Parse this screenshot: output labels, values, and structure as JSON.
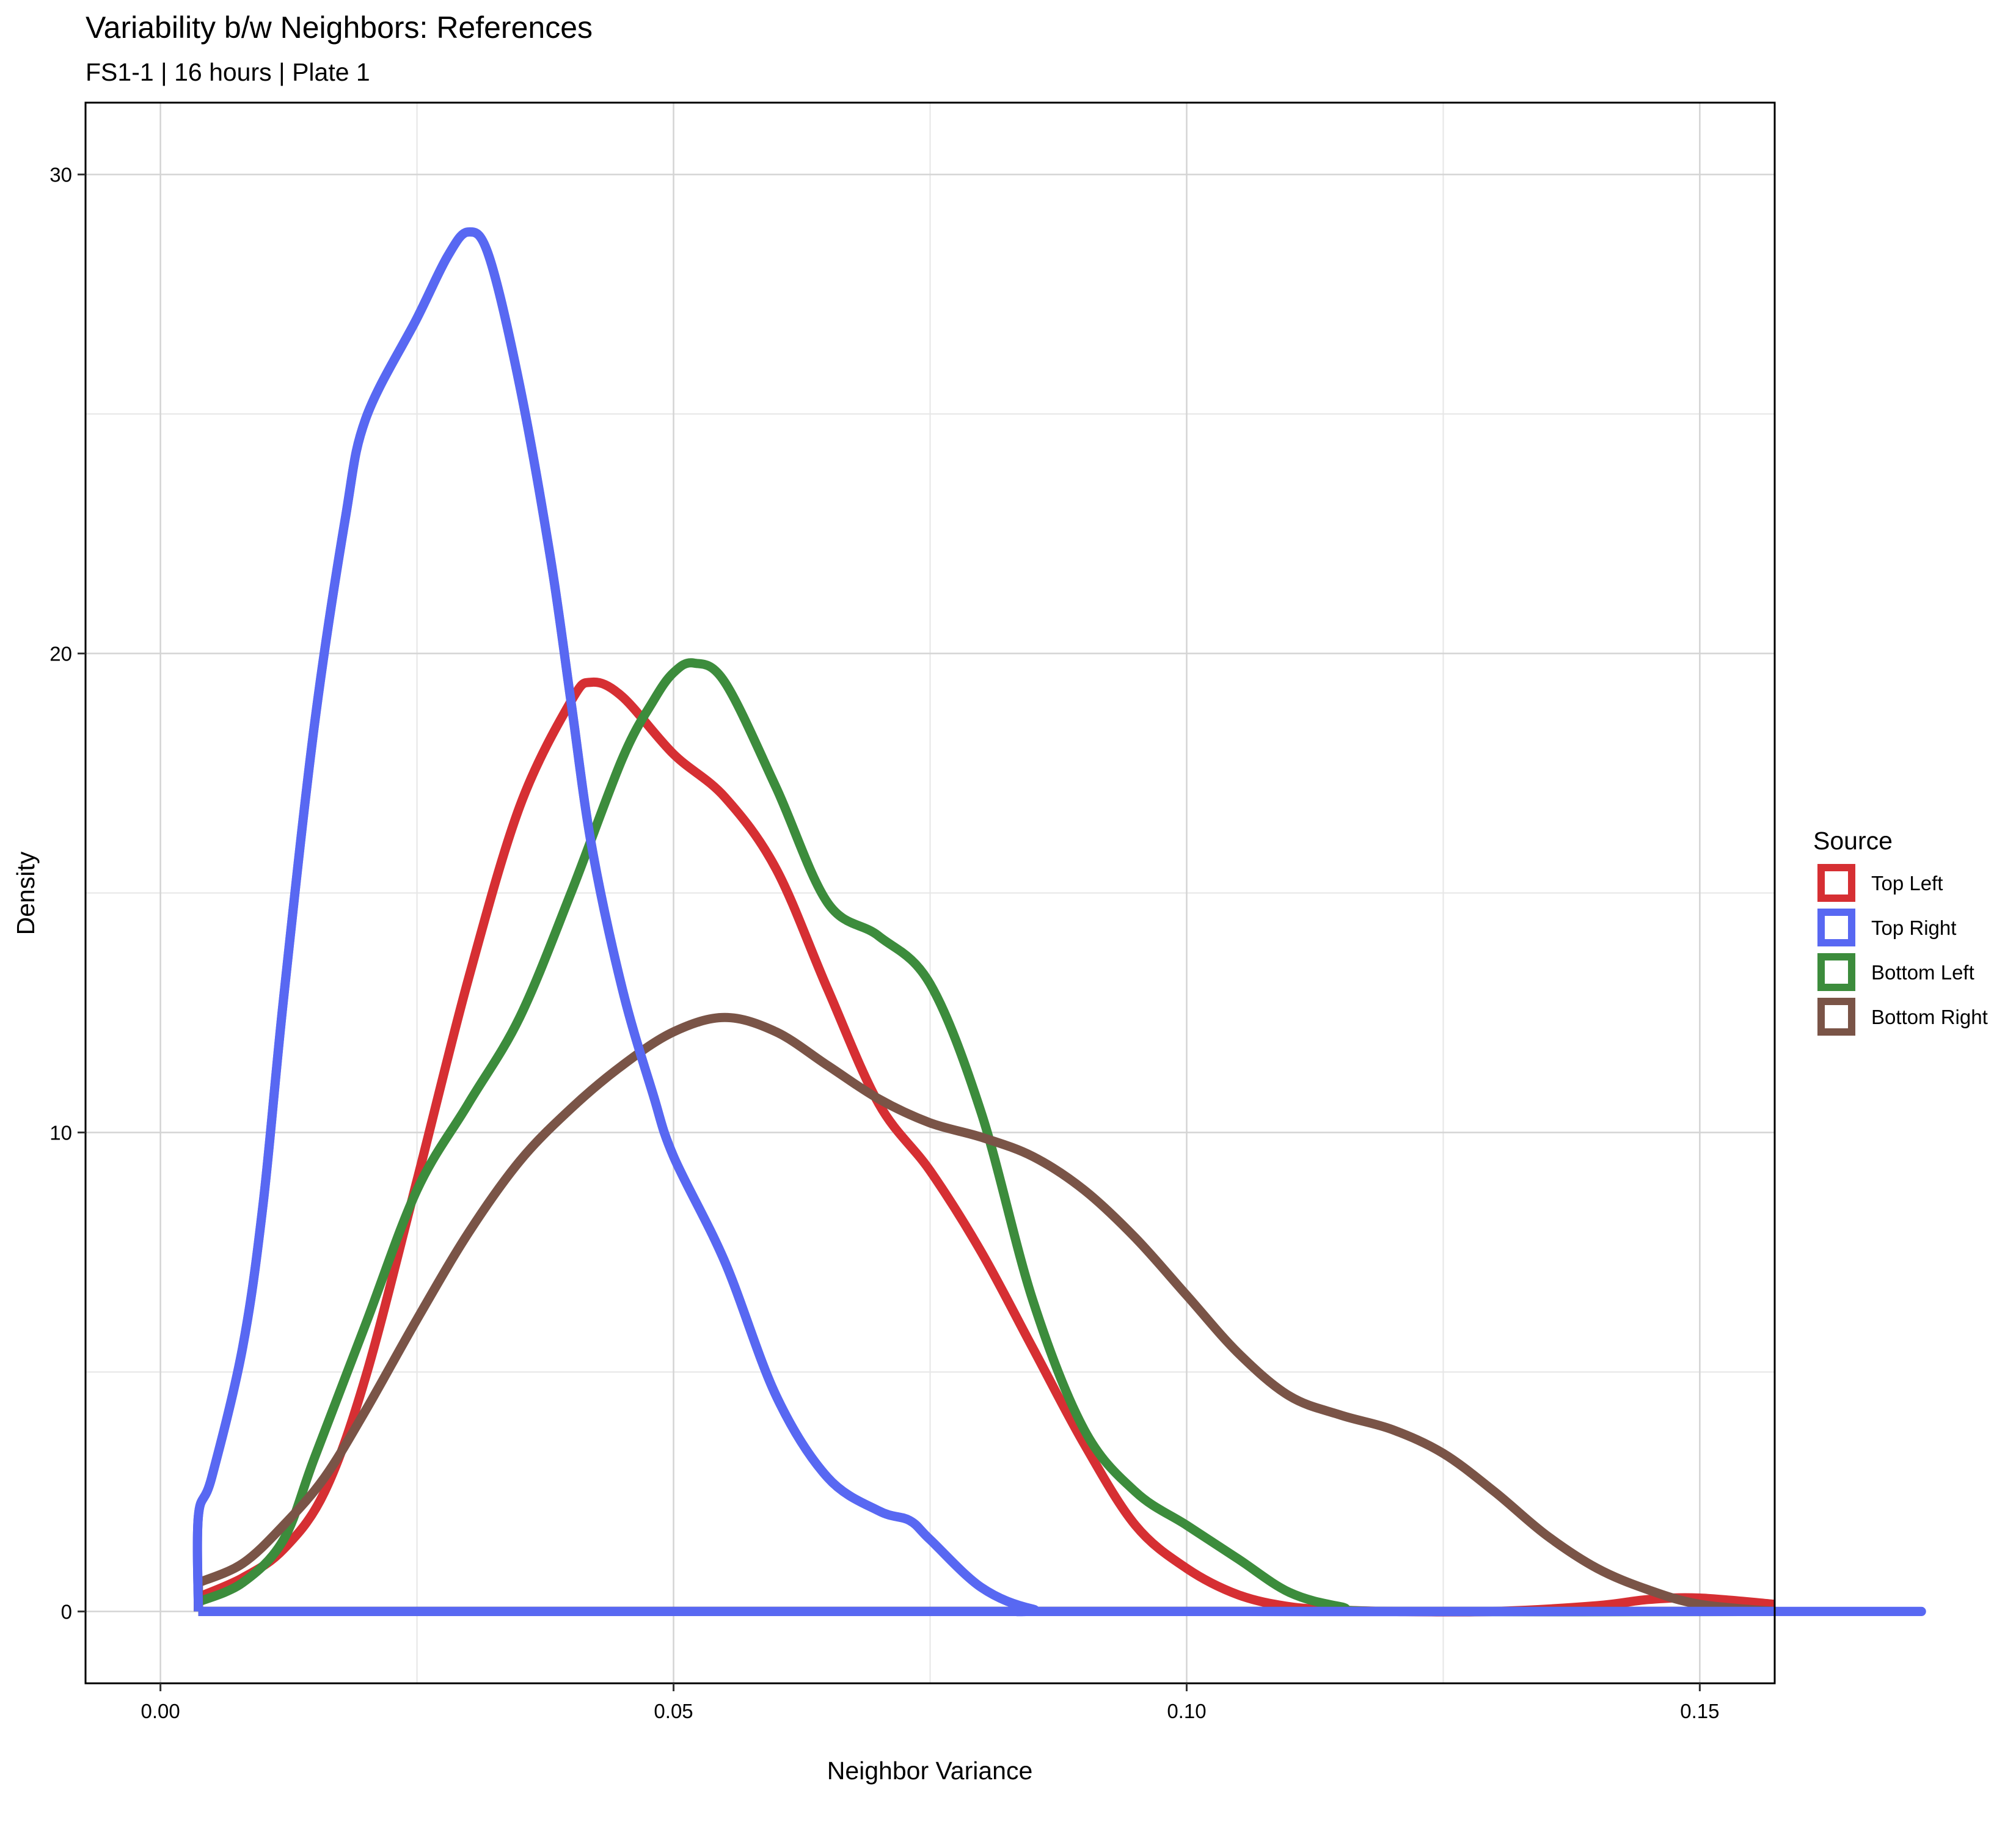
{
  "chart_data": {
    "type": "line",
    "title": "Variability b/w Neighbors: References",
    "subtitle": "FS1-1 | 16 hours | Plate 1",
    "xlabel": "Neighbor Variance",
    "ylabel": "Density",
    "xlim": [
      -0.0073,
      0.1573
    ],
    "ylim": [
      -1.5,
      31.5
    ],
    "x_ticks": [
      0.0,
      0.05,
      0.1,
      0.15
    ],
    "x_tick_labels": [
      "0.00",
      "0.05",
      "0.10",
      "0.15"
    ],
    "y_ticks": [
      0,
      10,
      20,
      30
    ],
    "y_tick_labels": [
      "0",
      "10",
      "20",
      "30"
    ],
    "grid": true,
    "legend": {
      "title": "Source",
      "position": "right"
    },
    "series": [
      {
        "name": "Top Left",
        "color": "#D62F33",
        "points": [
          [
            0.0037,
            0.3
          ],
          [
            0.008,
            0.7
          ],
          [
            0.012,
            1.3
          ],
          [
            0.016,
            2.5
          ],
          [
            0.02,
            4.9
          ],
          [
            0.025,
            9.0
          ],
          [
            0.03,
            13.2
          ],
          [
            0.035,
            16.8
          ],
          [
            0.04,
            19.0
          ],
          [
            0.042,
            19.4
          ],
          [
            0.045,
            19.1
          ],
          [
            0.05,
            17.9
          ],
          [
            0.055,
            17.0
          ],
          [
            0.06,
            15.5
          ],
          [
            0.065,
            13.0
          ],
          [
            0.07,
            10.6
          ],
          [
            0.075,
            9.2
          ],
          [
            0.08,
            7.5
          ],
          [
            0.085,
            5.5
          ],
          [
            0.09,
            3.5
          ],
          [
            0.095,
            1.8
          ],
          [
            0.1,
            0.9
          ],
          [
            0.105,
            0.35
          ],
          [
            0.11,
            0.1
          ],
          [
            0.115,
            0.03
          ],
          [
            0.12,
            0.0
          ],
          [
            0.13,
            0.0
          ],
          [
            0.14,
            0.12
          ],
          [
            0.145,
            0.25
          ],
          [
            0.15,
            0.28
          ],
          [
            0.1573,
            0.15
          ]
        ]
      },
      {
        "name": "Top Right",
        "color": "#5868F2",
        "points": [
          [
            0.0037,
            0.0
          ],
          [
            0.0037,
            2.0
          ],
          [
            0.005,
            2.8
          ],
          [
            0.008,
            5.5
          ],
          [
            0.01,
            8.5
          ],
          [
            0.012,
            12.8
          ],
          [
            0.015,
            18.5
          ],
          [
            0.018,
            22.8
          ],
          [
            0.02,
            24.9
          ],
          [
            0.025,
            27.0
          ],
          [
            0.028,
            28.3
          ],
          [
            0.03,
            28.8
          ],
          [
            0.032,
            28.3
          ],
          [
            0.035,
            25.6
          ],
          [
            0.038,
            22.0
          ],
          [
            0.04,
            19.0
          ],
          [
            0.042,
            16.0
          ],
          [
            0.045,
            13.0
          ],
          [
            0.048,
            10.8
          ],
          [
            0.05,
            9.5
          ],
          [
            0.055,
            7.3
          ],
          [
            0.06,
            4.5
          ],
          [
            0.065,
            2.8
          ],
          [
            0.07,
            2.1
          ],
          [
            0.073,
            1.9
          ],
          [
            0.075,
            1.5
          ],
          [
            0.08,
            0.5
          ],
          [
            0.085,
            0.05
          ],
          [
            0.09,
            0.0
          ],
          [
            0.1573,
            0.0
          ],
          [
            0.1573,
            0.0
          ],
          [
            0.0037,
            0.0
          ]
        ]
      },
      {
        "name": "Bottom Left",
        "color": "#3C8C3C",
        "points": [
          [
            0.0037,
            0.2
          ],
          [
            0.008,
            0.6
          ],
          [
            0.012,
            1.5
          ],
          [
            0.015,
            3.2
          ],
          [
            0.02,
            6.0
          ],
          [
            0.025,
            8.8
          ],
          [
            0.03,
            10.6
          ],
          [
            0.035,
            12.4
          ],
          [
            0.04,
            15.0
          ],
          [
            0.045,
            17.8
          ],
          [
            0.048,
            19.0
          ],
          [
            0.05,
            19.6
          ],
          [
            0.052,
            19.8
          ],
          [
            0.055,
            19.4
          ],
          [
            0.06,
            17.2
          ],
          [
            0.065,
            14.8
          ],
          [
            0.07,
            14.1
          ],
          [
            0.075,
            13.1
          ],
          [
            0.08,
            10.4
          ],
          [
            0.085,
            6.5
          ],
          [
            0.09,
            3.8
          ],
          [
            0.095,
            2.5
          ],
          [
            0.1,
            1.8
          ],
          [
            0.105,
            1.1
          ],
          [
            0.11,
            0.4
          ],
          [
            0.115,
            0.1
          ],
          [
            0.12,
            0.0
          ],
          [
            0.1573,
            0.0
          ]
        ]
      },
      {
        "name": "Bottom Right",
        "color": "#7A5447",
        "points": [
          [
            0.0037,
            0.6
          ],
          [
            0.008,
            1.0
          ],
          [
            0.012,
            1.8
          ],
          [
            0.016,
            2.8
          ],
          [
            0.02,
            4.2
          ],
          [
            0.025,
            6.1
          ],
          [
            0.03,
            7.9
          ],
          [
            0.035,
            9.4
          ],
          [
            0.04,
            10.5
          ],
          [
            0.045,
            11.4
          ],
          [
            0.05,
            12.1
          ],
          [
            0.055,
            12.4
          ],
          [
            0.06,
            12.1
          ],
          [
            0.065,
            11.4
          ],
          [
            0.07,
            10.7
          ],
          [
            0.075,
            10.2
          ],
          [
            0.08,
            9.9
          ],
          [
            0.085,
            9.5
          ],
          [
            0.09,
            8.8
          ],
          [
            0.095,
            7.8
          ],
          [
            0.1,
            6.6
          ],
          [
            0.105,
            5.4
          ],
          [
            0.11,
            4.5
          ],
          [
            0.115,
            4.1
          ],
          [
            0.12,
            3.8
          ],
          [
            0.125,
            3.3
          ],
          [
            0.13,
            2.5
          ],
          [
            0.135,
            1.6
          ],
          [
            0.14,
            0.9
          ],
          [
            0.145,
            0.45
          ],
          [
            0.15,
            0.15
          ],
          [
            0.1573,
            0.0
          ]
        ]
      }
    ]
  }
}
